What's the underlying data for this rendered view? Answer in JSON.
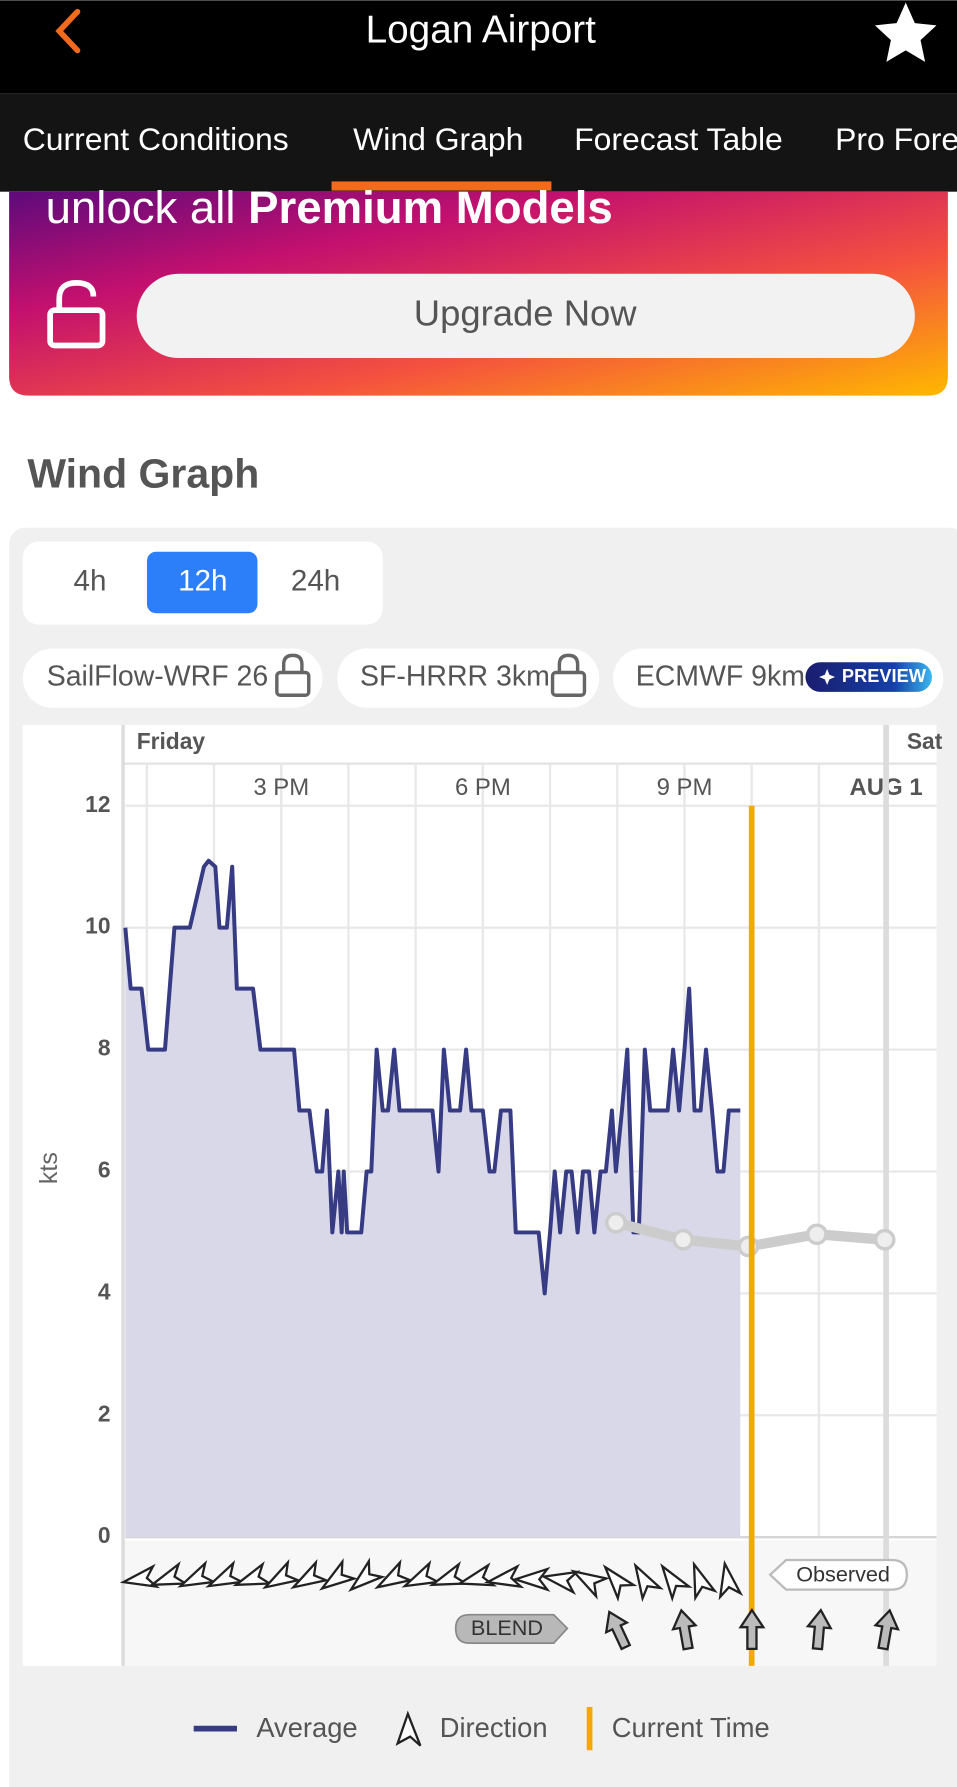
{
  "header": {
    "title": "Logan Airport"
  },
  "tabs": [
    "Current Conditions",
    "Wind Graph",
    "Forecast Table",
    "Pro Forecast"
  ],
  "banner": {
    "text": "unlock all ",
    "highlight": "Premium Models",
    "button": "Upgrade Now"
  },
  "section_title": "Wind Graph",
  "range_buttons": [
    "4h",
    "12h",
    "24h"
  ],
  "model_chips": [
    "SailFlow-WRF 26",
    "SF-HRRR 3km",
    "ECMWF 9km"
  ],
  "preview_badge": "PREVIEW",
  "chart_data": {
    "type": "line",
    "day_labels": [
      "Friday",
      "Sat"
    ],
    "ylabel": "kts",
    "xlim": [
      12.68,
      24.75
    ],
    "xticks": [
      {
        "value": 15,
        "label": "3 PM"
      },
      {
        "value": 18,
        "label": "6 PM"
      },
      {
        "value": 21,
        "label": "9 PM"
      },
      {
        "value": 24,
        "label": "AUG 1"
      }
    ],
    "ylim": [
      0,
      12
    ],
    "yticks": [
      0,
      2,
      4,
      6,
      8,
      10,
      12
    ],
    "grid": true,
    "series": [
      {
        "name": "Average",
        "color": "#363b84",
        "x": [
          12.68,
          12.76,
          12.85,
          12.92,
          13.02,
          13.27,
          13.41,
          13.64,
          13.85,
          13.92,
          14.02,
          14.08,
          14.19,
          14.27,
          14.34,
          14.58,
          14.69,
          15.19,
          15.27,
          15.42,
          15.53,
          15.61,
          15.68,
          15.76,
          15.85,
          15.9,
          15.93,
          15.98,
          16.19,
          16.27,
          16.34,
          16.42,
          16.51,
          16.59,
          16.68,
          16.76,
          17.25,
          17.34,
          17.42,
          17.51,
          17.66,
          17.75,
          17.83,
          18,
          18.1,
          18.17,
          18.27,
          18.41,
          18.49,
          18.83,
          18.92,
          19,
          19.07,
          19.15,
          19.24,
          19.32,
          19.41,
          19.49,
          19.58,
          19.66,
          19.75,
          19.83,
          19.92,
          19.98,
          20.07,
          20.15,
          20.24,
          20.32,
          20.41,
          20.49,
          20.75,
          20.83,
          20.92,
          21,
          21.07,
          21.15,
          21.24,
          21.32,
          21.41,
          21.49,
          21.58,
          21.66,
          21.83
        ],
        "values": [
          10,
          9,
          9,
          9,
          8,
          8,
          10,
          10,
          11,
          11.1,
          11,
          10,
          10,
          11,
          9,
          9,
          8,
          8,
          7,
          7,
          6,
          6,
          7,
          5,
          6,
          5,
          6,
          5,
          5,
          6,
          6,
          8,
          7,
          7,
          8,
          7,
          7,
          6,
          8,
          7,
          7,
          8,
          7,
          7,
          6,
          6,
          7,
          7,
          5,
          5,
          4,
          5,
          6,
          5,
          6,
          6,
          5,
          6,
          6,
          5,
          6,
          6,
          7,
          6,
          7,
          8,
          5,
          5,
          8,
          7,
          7,
          8,
          7,
          8,
          9,
          7,
          7,
          8,
          7,
          6,
          6,
          7,
          7
        ]
      },
      {
        "color": "#cccccc",
        "x": [
          19.98,
          20.98,
          21.95,
          22.97,
          23.98
        ],
        "values": [
          5.16,
          4.88,
          4.77,
          4.97,
          4.88
        ]
      }
    ],
    "current_time": 22.0,
    "current_time_color": "#f5a800",
    "blend_label": "BLEND",
    "observed_label": "Observed",
    "legend": {
      "direction": "Direction",
      "current_time": "Current Time"
    }
  }
}
